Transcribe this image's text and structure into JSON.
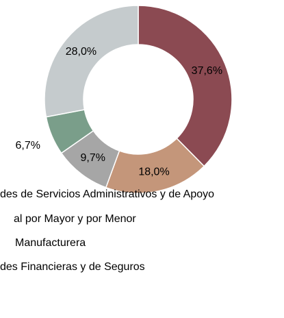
{
  "chart_data": {
    "type": "pie",
    "categories": [
      "des de Servicios Administrativos y de Apoyo",
      "al por Mayor y por Menor",
      "Manufacturera",
      "des Financieras y de Seguros",
      null
    ],
    "values": [
      37.6,
      18.0,
      9.7,
      6.7,
      28.0
    ],
    "value_labels": [
      "37,6%",
      "18,0%",
      "9,7%",
      "6,7%",
      "28,0%"
    ],
    "colors": [
      "#8b4a52",
      "#c4967a",
      "#a6a6a6",
      "#7a9e8a",
      "#c5cbcd"
    ]
  }
}
